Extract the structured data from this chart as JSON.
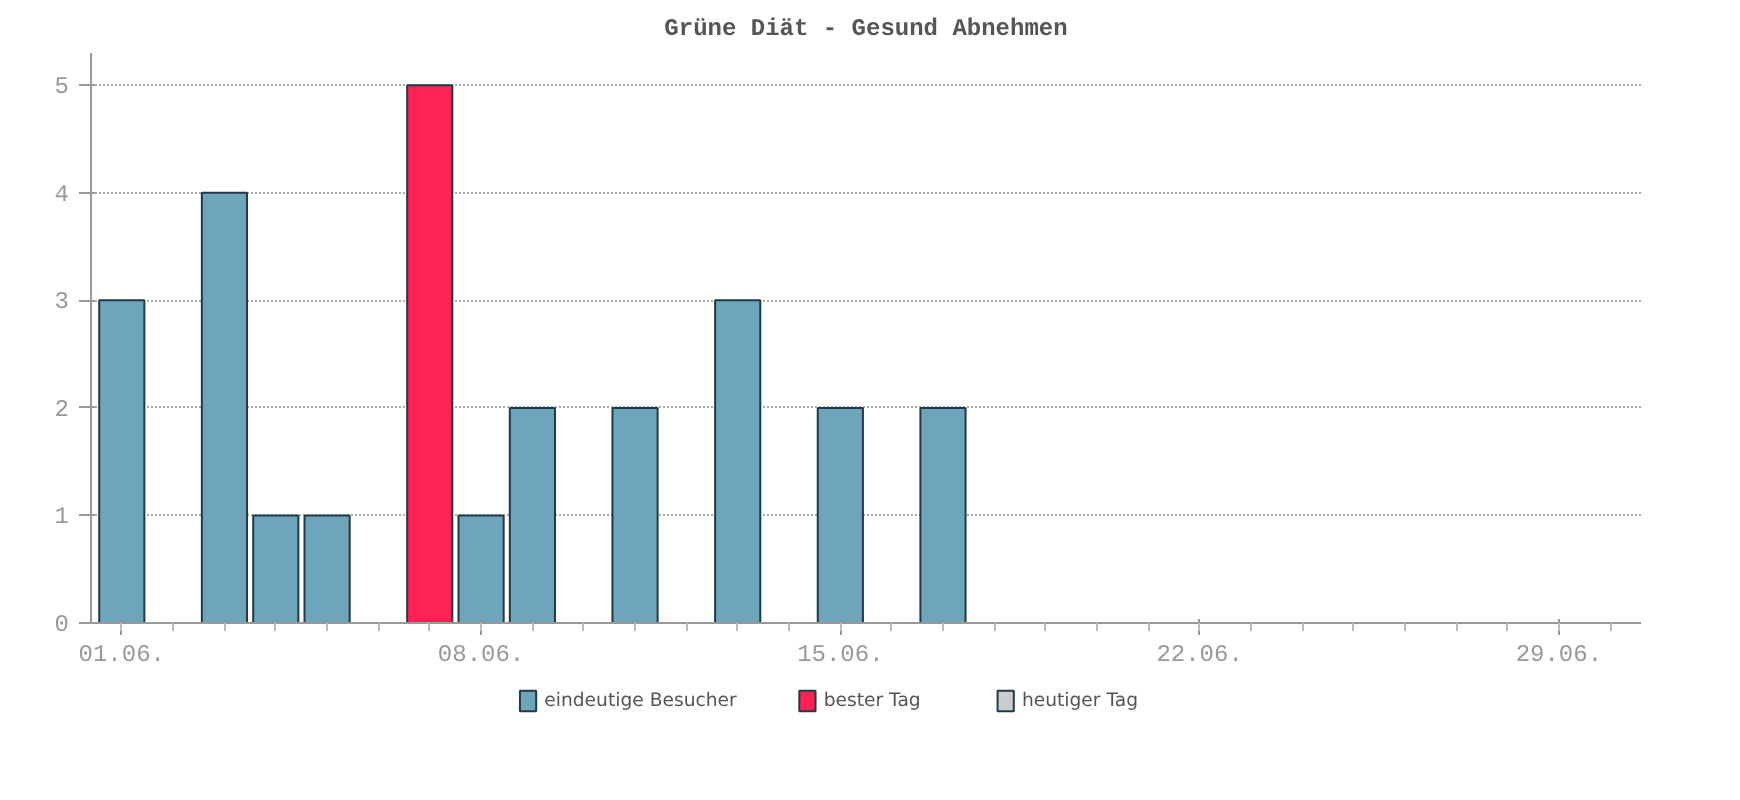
{
  "chart_data": {
    "type": "bar",
    "title": "Grüne Diät - Gesund Abnehmen",
    "categories": [
      "01.06.",
      null,
      null,
      null,
      null,
      null,
      null,
      "08.06.",
      null,
      null,
      null,
      null,
      null,
      null,
      "15.06.",
      null,
      null,
      null,
      null,
      null,
      null,
      "22.06.",
      null,
      null,
      null,
      null,
      null,
      null,
      "29.06.",
      null
    ],
    "series": [
      {
        "name": "eindeutige Besucher",
        "color": "#6ea5ba",
        "values": [
          3,
          null,
          4,
          1,
          1,
          null,
          null,
          1,
          2,
          null,
          2,
          null,
          3,
          null,
          2,
          null,
          2,
          null,
          null,
          null,
          null,
          null,
          null,
          null,
          null,
          null,
          null,
          null,
          null,
          null
        ]
      },
      {
        "name": "bester Tag",
        "color": "#ff2255",
        "values": [
          null,
          null,
          null,
          null,
          null,
          null,
          5,
          null,
          null,
          null,
          null,
          null,
          null,
          null,
          null,
          null,
          null,
          null,
          null,
          null,
          null,
          null,
          null,
          null,
          null,
          null,
          null,
          null,
          null,
          null
        ]
      },
      {
        "name": "heutiger Tag",
        "color": "#cccccc",
        "values": [
          null,
          null,
          null,
          null,
          null,
          null,
          null,
          null,
          null,
          null,
          null,
          null,
          null,
          null,
          null,
          null,
          null,
          null,
          null,
          null,
          null,
          null,
          null,
          null,
          null,
          null,
          null,
          null,
          null,
          null
        ]
      }
    ],
    "ylim": [
      0,
      5.3
    ],
    "yticks": [
      0,
      1,
      2,
      3,
      4,
      5
    ],
    "grid": "y",
    "legend": "bottom"
  }
}
